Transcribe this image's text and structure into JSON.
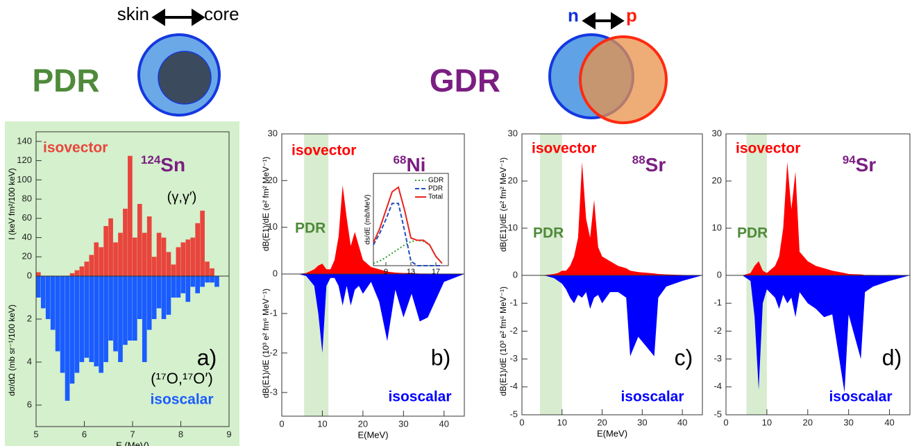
{
  "illustration": {
    "skin": "skin",
    "core": "core",
    "pdr_label": "PDR",
    "gdr_label": "GDR",
    "n": "n",
    "p": "p"
  },
  "chart_data": [
    {
      "type": "histogram",
      "x_label": "E (MeV)",
      "y_label": "I (keV fm²/100 keV)",
      "y2_label": "dσ/dΩ (mb sr⁻¹/100 keV)",
      "annotations": {
        "isotope_mass": "124",
        "isotope": "Sn",
        "reaction": "(γ,γ′)",
        "reaction2": "(¹⁷O,¹⁷O′)",
        "panel_label": "a)"
      },
      "bins": [
        5.0,
        5.1,
        5.2,
        5.3,
        5.4,
        5.5,
        5.6,
        5.7,
        5.8,
        5.9,
        6.0,
        6.1,
        6.2,
        6.3,
        6.4,
        6.5,
        6.6,
        6.7,
        6.8,
        6.9,
        7.0,
        7.1,
        7.2,
        7.3,
        7.4,
        7.5,
        7.6,
        7.7,
        7.8,
        7.9,
        8.0,
        8.1,
        8.2,
        8.3,
        8.4,
        8.5,
        8.6,
        8.7,
        8.8,
        8.9,
        9.0
      ],
      "series": [
        {
          "name": "isovector",
          "color": "#e8453c",
          "values": [
            4,
            0,
            0,
            0,
            0,
            0,
            0,
            3,
            6,
            10,
            15,
            22,
            35,
            30,
            52,
            60,
            35,
            45,
            70,
            125,
            40,
            75,
            45,
            62,
            20,
            45,
            40,
            25,
            12,
            30,
            35,
            38,
            40,
            55,
            68,
            15,
            8,
            0,
            0,
            0
          ]
        },
        {
          "name": "isoscalar",
          "color": "#1a5cff",
          "axis": "y2",
          "values": [
            1,
            1.5,
            2,
            2.5,
            3.5,
            4.5,
            5.8,
            5,
            4.5,
            4,
            3.8,
            4,
            4.2,
            4.5,
            4,
            3,
            3.5,
            4,
            3.2,
            3,
            3,
            2,
            4,
            2.5,
            2,
            1.5,
            2,
            1.8,
            1,
            1,
            0.8,
            1.2,
            0.5,
            0.8,
            0.5,
            0.3,
            0.3,
            0.5,
            0,
            0
          ]
        }
      ],
      "xlim": [
        5,
        9
      ],
      "xticks": [
        5,
        6,
        7,
        8,
        9
      ],
      "ylim": [
        0,
        150
      ],
      "yticks": [
        0,
        20,
        40,
        60,
        80,
        100,
        120,
        140
      ],
      "y2lim": [
        0,
        7
      ],
      "y2ticks": [
        2,
        4,
        6
      ]
    },
    {
      "type": "area",
      "x_label": "E(MeV)",
      "y_label": "dB(E1)/dE (e² fm² MeV⁻¹)",
      "y2_label": "dB(E1)/dE (10³ e² fm⁶ MeV⁻¹)",
      "pdr": "PDR",
      "pdr_band": [
        5.5,
        11.5
      ],
      "annotations": {
        "isotope_mass": "68",
        "isotope": "Ni",
        "panel_label": "b)"
      },
      "x": [
        0,
        4,
        6,
        8,
        9,
        10,
        11,
        12,
        13,
        14,
        15,
        16,
        17,
        18,
        19,
        20,
        22,
        24,
        26,
        28,
        30,
        32,
        34,
        36,
        40,
        45
      ],
      "series": [
        {
          "name": "isovector",
          "color": "#ff0000",
          "values": [
            0,
            0,
            0.2,
            1,
            1.8,
            2.2,
            1,
            1,
            3,
            8,
            19,
            12,
            6,
            9,
            6,
            3,
            1.5,
            1,
            0.5,
            0.3,
            0.2,
            0.2,
            0.1,
            0.1,
            0,
            0
          ]
        },
        {
          "name": "isoscalar",
          "color": "#0000ff",
          "axis": "y2",
          "values": [
            0,
            0,
            -0.05,
            -0.3,
            -1,
            -2,
            -0.3,
            -0.1,
            -0.1,
            -0.3,
            -0.8,
            -0.3,
            -0.8,
            -0.4,
            -0.3,
            -0.5,
            -0.2,
            -0.7,
            -1.7,
            -0.4,
            -1.1,
            -0.5,
            -1.2,
            -1.1,
            -0.2,
            0
          ]
        }
      ],
      "xlim": [
        0,
        45
      ],
      "xticks": [
        0,
        10,
        20,
        30,
        40
      ],
      "ylim": [
        0,
        30
      ],
      "yticks": [
        0,
        10,
        20,
        30
      ],
      "y2lim": [
        0,
        -3.6
      ],
      "y2ticks": [
        -1,
        -2,
        -3
      ],
      "inset": {
        "type": "line",
        "y_label": "ds/dE (mb/MeV)",
        "xlim": [
          7,
          19
        ],
        "xticks": [
          9,
          13,
          17
        ],
        "ylim": [
          0,
          2
        ],
        "x": [
          7,
          8,
          9,
          10,
          11,
          12,
          13,
          14,
          15,
          16,
          17,
          18
        ],
        "series": [
          {
            "name": "GDR",
            "color": "#2ca02c",
            "dash": "2,3",
            "values": [
              0.05,
              0.1,
              0.18,
              0.27,
              0.36,
              0.45,
              0.52,
              0.55,
              0.53,
              0.45,
              0.2,
              0.05
            ]
          },
          {
            "name": "PDR",
            "color": "#1f4fbf",
            "dash": "6,3",
            "values": [
              0.45,
              0.7,
              1.0,
              1.35,
              1.35,
              0.75,
              0.1,
              0,
              0,
              0,
              0,
              0
            ]
          },
          {
            "name": "Total",
            "color": "#e8231c",
            "values": [
              0.5,
              0.8,
              1.2,
              1.6,
              1.7,
              1.2,
              0.6,
              0.55,
              0.55,
              0.45,
              0.2,
              0.05
            ]
          }
        ]
      }
    },
    {
      "type": "area",
      "x_label": "E(MeV)",
      "y_label": "dB(E1)/dE (e² fm² MeV⁻¹)",
      "y2_label": "dB(E1)/dE (10³ e² fm⁶ MeV⁻¹)",
      "pdr": "PDR",
      "pdr_band": [
        4.5,
        10
      ],
      "annotations": {
        "isotope_mass": "88",
        "isotope": "Sr",
        "panel_label": "c)"
      },
      "x": [
        0,
        4,
        6,
        8,
        9,
        10,
        11,
        12,
        13,
        14,
        15,
        16,
        17,
        18,
        19,
        20,
        22,
        24,
        26,
        27,
        29,
        33,
        34,
        36,
        40,
        45
      ],
      "series": [
        {
          "name": "isovector",
          "color": "#ff0000",
          "values": [
            0,
            0,
            0.1,
            0.3,
            0.5,
            1,
            1,
            2,
            4,
            8,
            24,
            12,
            8,
            16,
            6,
            4,
            3,
            2,
            1.5,
            1,
            0.7,
            0.4,
            0.3,
            0.2,
            0.1,
            0
          ]
        },
        {
          "name": "isoscalar",
          "color": "#0000ff",
          "axis": "y2",
          "values": [
            0,
            0,
            -0.02,
            -0.1,
            -0.2,
            -0.3,
            -0.5,
            -0.8,
            -1,
            -0.7,
            -0.8,
            -0.6,
            -1.2,
            -0.8,
            -0.7,
            -1,
            -0.6,
            -0.6,
            -0.8,
            -2.9,
            -2.2,
            -2.9,
            -0.8,
            -0.4,
            -0.2,
            0
          ]
        }
      ],
      "xlim": [
        0,
        45
      ],
      "xticks": [
        0,
        10,
        20,
        30,
        40
      ],
      "ylim": [
        0,
        30
      ],
      "yticks": [
        0,
        10,
        20,
        30
      ],
      "y2lim": [
        0,
        -5
      ],
      "y2ticks": [
        -1,
        -2,
        -3,
        -4,
        -5
      ]
    },
    {
      "type": "area",
      "pdr": "PDR",
      "pdr_band": [
        5,
        10
      ],
      "annotations": {
        "isotope_mass": "94",
        "isotope": "Sr",
        "panel_label": "d)"
      },
      "x": [
        0,
        4,
        6,
        7,
        8,
        9,
        10,
        12,
        13,
        14,
        15,
        16,
        17,
        18,
        19,
        20,
        22,
        24,
        26,
        29,
        30,
        33,
        34,
        36,
        40,
        45
      ],
      "series": [
        {
          "name": "isovector",
          "color": "#ff0000",
          "values": [
            0,
            0,
            0.5,
            2,
            3,
            1,
            0.5,
            2,
            4,
            10,
            24,
            14,
            22,
            5,
            4,
            3,
            2,
            1.5,
            1,
            0.5,
            0.3,
            0.2,
            0.1,
            0.1,
            0,
            0
          ]
        },
        {
          "name": "isoscalar",
          "color": "#0000ff",
          "axis": "y2",
          "values": [
            0,
            0,
            -0.2,
            -1.5,
            -4.1,
            -1,
            -0.5,
            -0.8,
            -1.2,
            -0.7,
            -1,
            -0.8,
            -1.5,
            -0.6,
            -0.8,
            -1,
            -1.2,
            -1.5,
            -1.4,
            -4.2,
            -1.4,
            -3,
            -0.6,
            -0.4,
            -0.2,
            0
          ]
        }
      ],
      "xlim": [
        0,
        45
      ],
      "xticks": [
        0,
        10,
        20,
        30,
        40
      ],
      "ylim": [
        0,
        30
      ],
      "yticks": [
        0,
        10,
        20,
        30
      ],
      "y2lim": [
        0,
        -5
      ],
      "y2ticks": [
        -1,
        -2,
        -3,
        -4,
        -5
      ]
    }
  ]
}
